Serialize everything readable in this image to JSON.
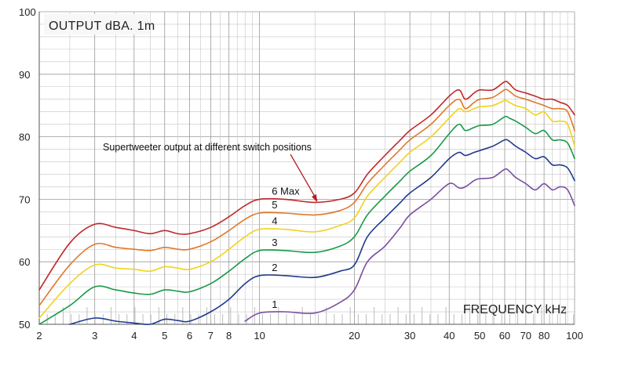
{
  "chart_data": {
    "type": "line",
    "title": "OUTPUT dBA. 1m",
    "xlabel": "FREQUENCY kHz",
    "ylabel": "",
    "x_scale": "log",
    "xlim": [
      2,
      100
    ],
    "ylim": [
      50,
      100
    ],
    "x_ticks": [
      2,
      3,
      4,
      5,
      6,
      7,
      8,
      10,
      20,
      30,
      40,
      50,
      60,
      70,
      80,
      100
    ],
    "y_ticks": [
      50,
      60,
      70,
      80,
      90,
      100
    ],
    "annotation": "Supertweeter output at different switch positions",
    "x": [
      2,
      2.5,
      3,
      3.5,
      4,
      4.5,
      5,
      5.5,
      6,
      7,
      8,
      9,
      10,
      12,
      15,
      18,
      20,
      22,
      25,
      28,
      30,
      35,
      40,
      43,
      45,
      48,
      50,
      55,
      60,
      62,
      65,
      70,
      75,
      80,
      85,
      90,
      95,
      100
    ],
    "series": [
      {
        "name": "1",
        "color": "#7a4fa0",
        "values": [
          null,
          null,
          null,
          null,
          null,
          null,
          null,
          null,
          null,
          null,
          null,
          50.5,
          51.8,
          52.0,
          51.8,
          53.5,
          55.5,
          60.0,
          62.5,
          65.5,
          67.5,
          70.0,
          72.5,
          71.8,
          72.0,
          73.0,
          73.3,
          73.5,
          74.8,
          74.5,
          73.5,
          72.5,
          71.5,
          72.5,
          71.5,
          72.0,
          71.5,
          69.0
        ]
      },
      {
        "name": "2",
        "color": "#1f3a8c",
        "values": [
          null,
          49.5,
          51.0,
          50.5,
          50.2,
          50.0,
          50.8,
          50.6,
          50.5,
          52.0,
          54.0,
          56.5,
          57.8,
          57.8,
          57.5,
          58.5,
          59.5,
          64.0,
          67.0,
          69.5,
          71.0,
          73.5,
          76.5,
          77.5,
          77.0,
          77.5,
          77.8,
          78.5,
          79.5,
          79.3,
          78.5,
          77.5,
          76.5,
          76.8,
          75.5,
          75.5,
          75.0,
          73.0
        ]
      },
      {
        "name": "3",
        "color": "#1a9a4a",
        "values": [
          50.0,
          53.0,
          56.0,
          55.5,
          55.0,
          54.8,
          55.5,
          55.3,
          55.2,
          56.5,
          58.5,
          60.5,
          61.8,
          61.8,
          61.5,
          62.5,
          64.0,
          67.5,
          70.5,
          73.0,
          74.5,
          77.0,
          80.5,
          82.0,
          81.0,
          81.5,
          81.8,
          82.0,
          83.2,
          83.0,
          82.5,
          81.5,
          80.5,
          81.0,
          79.5,
          79.5,
          79.0,
          76.5
        ]
      },
      {
        "name": "4",
        "color": "#f2d21a",
        "values": [
          51.0,
          56.5,
          59.5,
          59.0,
          58.8,
          58.5,
          59.2,
          59.0,
          58.8,
          60.0,
          62.0,
          64.0,
          65.2,
          65.2,
          64.8,
          65.8,
          67.0,
          70.5,
          73.5,
          76.0,
          77.5,
          80.0,
          83.0,
          84.5,
          84.0,
          84.5,
          84.8,
          85.0,
          85.8,
          85.5,
          85.0,
          84.5,
          83.5,
          84.0,
          82.5,
          82.5,
          82.0,
          78.5
        ]
      },
      {
        "name": "5",
        "color": "#e0782a",
        "values": [
          53.0,
          59.5,
          62.8,
          62.3,
          62.0,
          61.8,
          62.3,
          62.0,
          62.0,
          63.2,
          65.0,
          66.8,
          67.8,
          67.8,
          67.5,
          68.2,
          69.5,
          72.5,
          75.5,
          78.0,
          79.5,
          82.0,
          85.0,
          86.0,
          84.5,
          85.5,
          86.0,
          86.3,
          87.5,
          87.3,
          86.5,
          86.0,
          85.5,
          85.0,
          84.5,
          84.5,
          84.0,
          81.0
        ]
      },
      {
        "name": "6 Max",
        "color": "#c0282a",
        "values": [
          55.5,
          63.0,
          66.0,
          65.5,
          65.0,
          64.5,
          65.0,
          64.5,
          64.5,
          65.5,
          67.2,
          69.0,
          70.0,
          70.0,
          69.5,
          70.0,
          71.0,
          74.0,
          77.0,
          79.5,
          81.0,
          83.5,
          86.5,
          87.5,
          86.0,
          87.0,
          87.5,
          87.5,
          88.8,
          88.5,
          87.5,
          87.0,
          86.5,
          86.0,
          86.0,
          85.5,
          85.0,
          83.5
        ]
      }
    ],
    "label_positions_x": [
      11,
      11,
      11,
      11,
      11,
      11
    ]
  }
}
